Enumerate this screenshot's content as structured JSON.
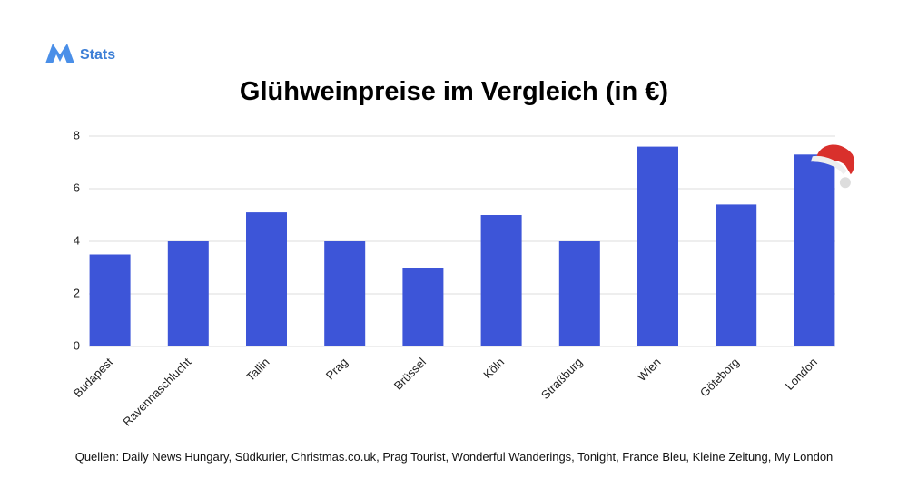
{
  "brand": "Stats",
  "chart_data": {
    "type": "bar",
    "title": "Glühweinpreise im Vergleich (in €)",
    "categories": [
      "Budapest",
      "Ravennaschlucht",
      "Tallin",
      "Prag",
      "Brüssel",
      "Köln",
      "Straßburg",
      "Wien",
      "Göteborg",
      "London"
    ],
    "values": [
      3.5,
      4,
      5.1,
      4,
      3,
      5,
      4,
      7.6,
      5.4,
      7.3
    ],
    "color": "#3d55d8",
    "ylim": [
      0,
      8
    ],
    "yticks": [
      0,
      2,
      4,
      6,
      8
    ],
    "grid": true,
    "source": "Quellen: Daily News Hungary, Südkurier, Christmas.co.uk, Prag Tourist, Wonderful Wanderings, Tonight, France Bleu, Kleine Zeitung, My London"
  }
}
